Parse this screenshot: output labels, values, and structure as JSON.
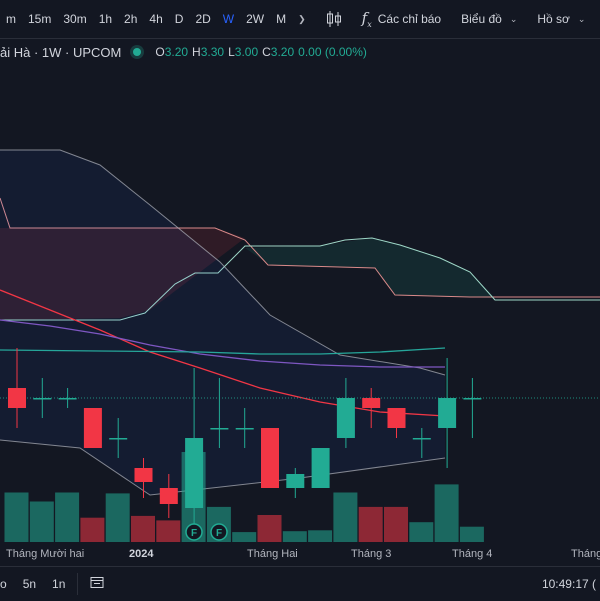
{
  "toolbar": {
    "intervals": [
      "m",
      "15m",
      "30m",
      "1h",
      "2h",
      "4h",
      "D",
      "2D",
      "W",
      "2W",
      "M"
    ],
    "active_interval": "W",
    "indicators_label": "Các chỉ báo",
    "charts_label": "Biểu đồ",
    "profile_label": "Hồ sơ"
  },
  "legend": {
    "symbol": "ải Hà · 1W · UPCOM",
    "open_key": "O",
    "open": "3.20",
    "high_key": "H",
    "high": "3.30",
    "low_key": "L",
    "low": "3.00",
    "close_key": "C",
    "close": "3.20",
    "change": "0.00 (0.00%)"
  },
  "colors": {
    "up": "#22ab94",
    "down": "#f23645",
    "accent": "#2962ff",
    "background": "#131722"
  },
  "x_axis": {
    "year_label": "2024",
    "labels": [
      "Tháng Mười hai",
      "Tháng Hai",
      "Tháng 3",
      "Tháng 4",
      "Tháng"
    ]
  },
  "markers": [
    "F",
    "F"
  ],
  "footer": {
    "ranges": [
      "o",
      "5n",
      "1n"
    ],
    "clock": "10:49:17 ("
  },
  "chart_data": {
    "type": "candlestick",
    "close_price": 3.2,
    "candles": [
      {
        "open": 3.25,
        "high": 3.45,
        "low": 3.05,
        "close": 3.15
      },
      {
        "open": 3.2,
        "high": 3.3,
        "low": 3.1,
        "close": 3.2
      },
      {
        "open": 3.2,
        "high": 3.25,
        "low": 3.15,
        "close": 3.2
      },
      {
        "open": 3.15,
        "high": 3.15,
        "low": 2.95,
        "close": 2.95
      },
      {
        "open": 3.0,
        "high": 3.1,
        "low": 2.9,
        "close": 3.0
      },
      {
        "open": 2.85,
        "high": 2.9,
        "low": 2.7,
        "close": 2.78
      },
      {
        "open": 2.75,
        "high": 2.82,
        "low": 2.6,
        "close": 2.67
      },
      {
        "open": 2.65,
        "high": 3.35,
        "low": 2.55,
        "close": 3.0
      },
      {
        "open": 3.05,
        "high": 3.3,
        "low": 2.95,
        "close": 3.05
      },
      {
        "open": 3.05,
        "high": 3.15,
        "low": 2.95,
        "close": 3.05
      },
      {
        "open": 3.05,
        "high": 3.05,
        "low": 2.75,
        "close": 2.75
      },
      {
        "open": 2.75,
        "high": 2.85,
        "low": 2.7,
        "close": 2.82
      },
      {
        "open": 2.75,
        "high": 2.95,
        "low": 2.75,
        "close": 2.95
      },
      {
        "open": 3.0,
        "high": 3.3,
        "low": 2.95,
        "close": 3.2
      },
      {
        "open": 3.2,
        "high": 3.25,
        "low": 3.05,
        "close": 3.15
      },
      {
        "open": 3.15,
        "high": 3.15,
        "low": 3.0,
        "close": 3.05
      },
      {
        "open": 3.0,
        "high": 3.05,
        "low": 2.9,
        "close": 3.0
      },
      {
        "open": 3.05,
        "high": 3.4,
        "low": 2.85,
        "close": 3.2
      },
      {
        "open": 3.2,
        "high": 3.3,
        "low": 3.0,
        "close": 3.2
      }
    ],
    "volume_scale_max": 100,
    "volumes": [
      {
        "v": 55,
        "up": true
      },
      {
        "v": 45,
        "up": true
      },
      {
        "v": 55,
        "up": true
      },
      {
        "v": 27,
        "up": false
      },
      {
        "v": 54,
        "up": true
      },
      {
        "v": 29,
        "up": false
      },
      {
        "v": 24,
        "up": false
      },
      {
        "v": 100,
        "up": true
      },
      {
        "v": 39,
        "up": true
      },
      {
        "v": 11,
        "up": true
      },
      {
        "v": 30,
        "up": false
      },
      {
        "v": 12,
        "up": true
      },
      {
        "v": 13,
        "up": true
      },
      {
        "v": 55,
        "up": true
      },
      {
        "v": 39,
        "up": false
      },
      {
        "v": 39,
        "up": false
      },
      {
        "v": 22,
        "up": true
      },
      {
        "v": 64,
        "up": true
      },
      {
        "v": 17,
        "up": true
      }
    ]
  }
}
